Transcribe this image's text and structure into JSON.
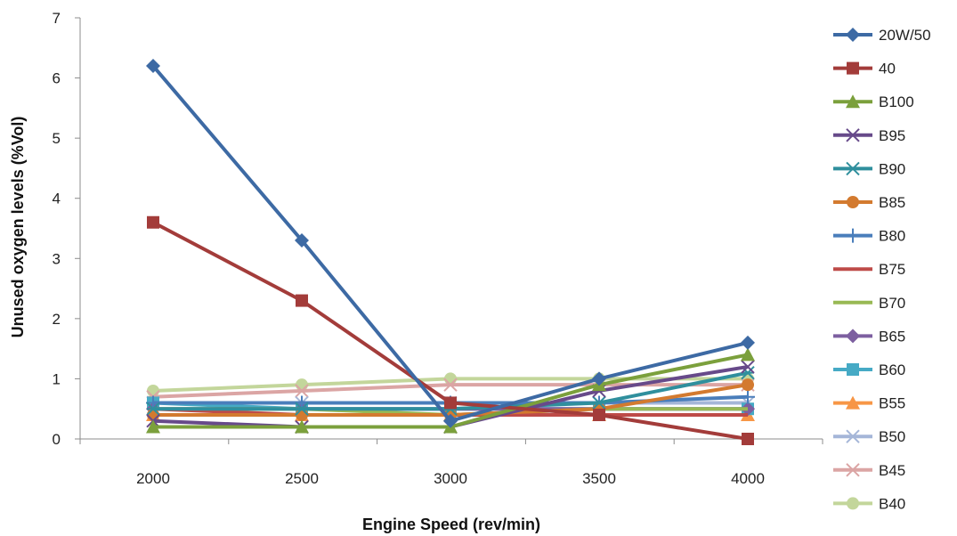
{
  "chart_data": {
    "type": "line",
    "title": "",
    "xlabel": "Engine Speed (rev/min)",
    "ylabel": "Unused oxygen levels (%Vol)",
    "x": [
      2000,
      2500,
      3000,
      3500,
      4000
    ],
    "x_tick_labels": [
      "2000",
      "2500",
      "3000",
      "3500",
      "4000"
    ],
    "ylim": [
      0,
      7
    ],
    "y_ticks": [
      0,
      1,
      2,
      3,
      4,
      5,
      6,
      7
    ],
    "grid": false,
    "legend_position": "right",
    "series": [
      {
        "name": "20W/50",
        "color": "#3d6aa4",
        "marker": "diamond",
        "values": [
          6.2,
          3.3,
          0.3,
          1.0,
          1.6
        ]
      },
      {
        "name": "40",
        "color": "#a33c3a",
        "marker": "square",
        "values": [
          3.6,
          2.3,
          0.6,
          0.4,
          0.0
        ]
      },
      {
        "name": "B100",
        "color": "#7ba03c",
        "marker": "triangle",
        "values": [
          0.2,
          0.2,
          0.2,
          0.9,
          1.4
        ]
      },
      {
        "name": "B95",
        "color": "#674a8a",
        "marker": "x",
        "values": [
          0.3,
          0.2,
          0.2,
          0.8,
          1.2
        ]
      },
      {
        "name": "B90",
        "color": "#2f8f9d",
        "marker": "asterisk",
        "values": [
          0.5,
          0.5,
          0.5,
          0.6,
          1.1
        ]
      },
      {
        "name": "B85",
        "color": "#d37a2f",
        "marker": "circle",
        "values": [
          0.4,
          0.4,
          0.4,
          0.5,
          0.9
        ]
      },
      {
        "name": "B80",
        "color": "#4a7ebb",
        "marker": "plus",
        "values": [
          0.6,
          0.6,
          0.6,
          0.6,
          0.7
        ]
      },
      {
        "name": "B75",
        "color": "#be4b48",
        "marker": "none",
        "values": [
          0.5,
          0.4,
          0.4,
          0.4,
          0.4
        ]
      },
      {
        "name": "B70",
        "color": "#98b954",
        "marker": "none",
        "values": [
          0.5,
          0.5,
          0.4,
          0.5,
          0.5
        ]
      },
      {
        "name": "B65",
        "color": "#7d5fa0",
        "marker": "diamond",
        "values": [
          0.5,
          0.5,
          0.5,
          0.5,
          0.5
        ]
      },
      {
        "name": "B60",
        "color": "#46aac5",
        "marker": "square",
        "values": [
          0.6,
          0.5,
          0.5,
          0.5,
          0.5
        ]
      },
      {
        "name": "B55",
        "color": "#f79646",
        "marker": "triangle",
        "values": [
          0.4,
          0.4,
          0.4,
          0.4,
          0.4
        ]
      },
      {
        "name": "B50",
        "color": "#a5b6d8",
        "marker": "x",
        "values": [
          0.6,
          0.6,
          0.6,
          0.6,
          0.6
        ]
      },
      {
        "name": "B45",
        "color": "#dba5a4",
        "marker": "asterisk",
        "values": [
          0.7,
          0.8,
          0.9,
          0.9,
          0.9
        ]
      },
      {
        "name": "B40",
        "color": "#c3d69b",
        "marker": "circle",
        "values": [
          0.8,
          0.9,
          1.0,
          1.0,
          1.0
        ]
      }
    ]
  }
}
